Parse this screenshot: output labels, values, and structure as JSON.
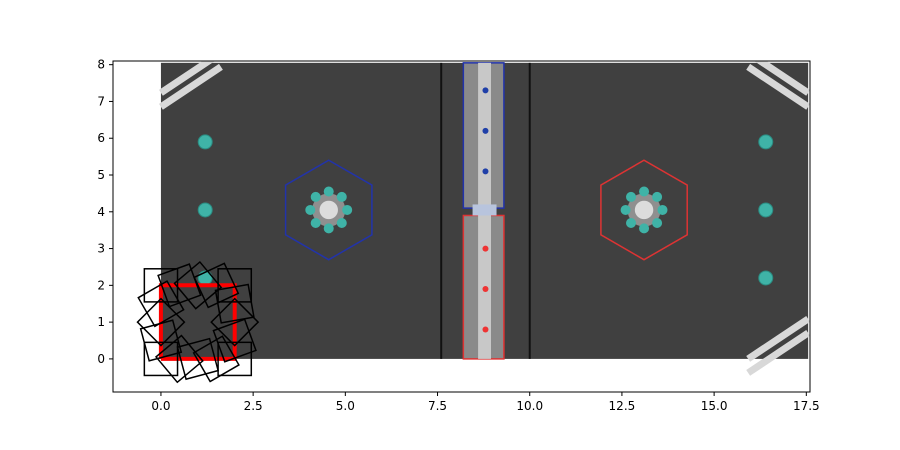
{
  "chart_data": {
    "type": "scatter",
    "title": "",
    "xlabel": "",
    "ylabel": "",
    "xlim": [
      -1.3,
      17.6
    ],
    "ylim": [
      -0.9,
      8.1
    ],
    "xticks": [
      0.0,
      2.5,
      5.0,
      7.5,
      10.0,
      12.5,
      15.0,
      17.5
    ],
    "xtick_labels": [
      "0.0",
      "2.5",
      "5.0",
      "7.5",
      "10.0",
      "12.5",
      "15.0",
      "17.5"
    ],
    "yticks": [
      0,
      1,
      2,
      3,
      4,
      5,
      6,
      7,
      8
    ],
    "ytick_labels": [
      "0",
      "1",
      "2",
      "3",
      "4",
      "5",
      "6",
      "7",
      "8"
    ],
    "grid": false,
    "legend": "none",
    "field_extent": {
      "x": [
        0,
        17.55
      ],
      "y": [
        0,
        8.05
      ]
    },
    "field_lines_x": [
      7.6,
      10.0
    ],
    "hub_hexagons": [
      {
        "name": "blue-hub",
        "center": [
          4.55,
          4.05
        ],
        "radius": 1.35,
        "color": "#2233aa"
      },
      {
        "name": "red-hub",
        "center": [
          13.1,
          4.05
        ],
        "radius": 1.35,
        "color": "#dd3333"
      }
    ],
    "balls": [
      {
        "x": 1.2,
        "y": 5.9
      },
      {
        "x": 1.2,
        "y": 4.05
      },
      {
        "x": 1.2,
        "y": 2.2
      },
      {
        "x": 16.4,
        "y": 5.9
      },
      {
        "x": 16.4,
        "y": 4.05
      },
      {
        "x": 16.4,
        "y": 2.2
      }
    ],
    "series": [
      {
        "type": "path",
        "color": "#ff0000",
        "points": [
          [
            0,
            0
          ],
          [
            0,
            2
          ],
          [
            2,
            2
          ],
          [
            2,
            0
          ],
          [
            0,
            0
          ]
        ]
      },
      {
        "type": "robot-poses",
        "color": "#000000",
        "size": 0.9,
        "poses": [
          {
            "x": 0,
            "y": 0,
            "theta": 0
          },
          {
            "x": 0,
            "y": 0.5,
            "theta": 15
          },
          {
            "x": 0,
            "y": 1.0,
            "theta": 45
          },
          {
            "x": 0,
            "y": 1.5,
            "theta": 30
          },
          {
            "x": 0,
            "y": 2.0,
            "theta": 0
          },
          {
            "x": 0.5,
            "y": 2.0,
            "theta": 20
          },
          {
            "x": 1.0,
            "y": 2.0,
            "theta": 40
          },
          {
            "x": 1.5,
            "y": 2.0,
            "theta": 25
          },
          {
            "x": 2.0,
            "y": 2.0,
            "theta": 0
          },
          {
            "x": 2.0,
            "y": 1.5,
            "theta": 10
          },
          {
            "x": 2.0,
            "y": 1.0,
            "theta": 45
          },
          {
            "x": 2.0,
            "y": 0.5,
            "theta": 20
          },
          {
            "x": 2.0,
            "y": 0,
            "theta": 0
          },
          {
            "x": 1.5,
            "y": 0,
            "theta": 30
          },
          {
            "x": 1.0,
            "y": 0,
            "theta": 15
          },
          {
            "x": 0.5,
            "y": 0,
            "theta": 40
          }
        ]
      }
    ]
  }
}
